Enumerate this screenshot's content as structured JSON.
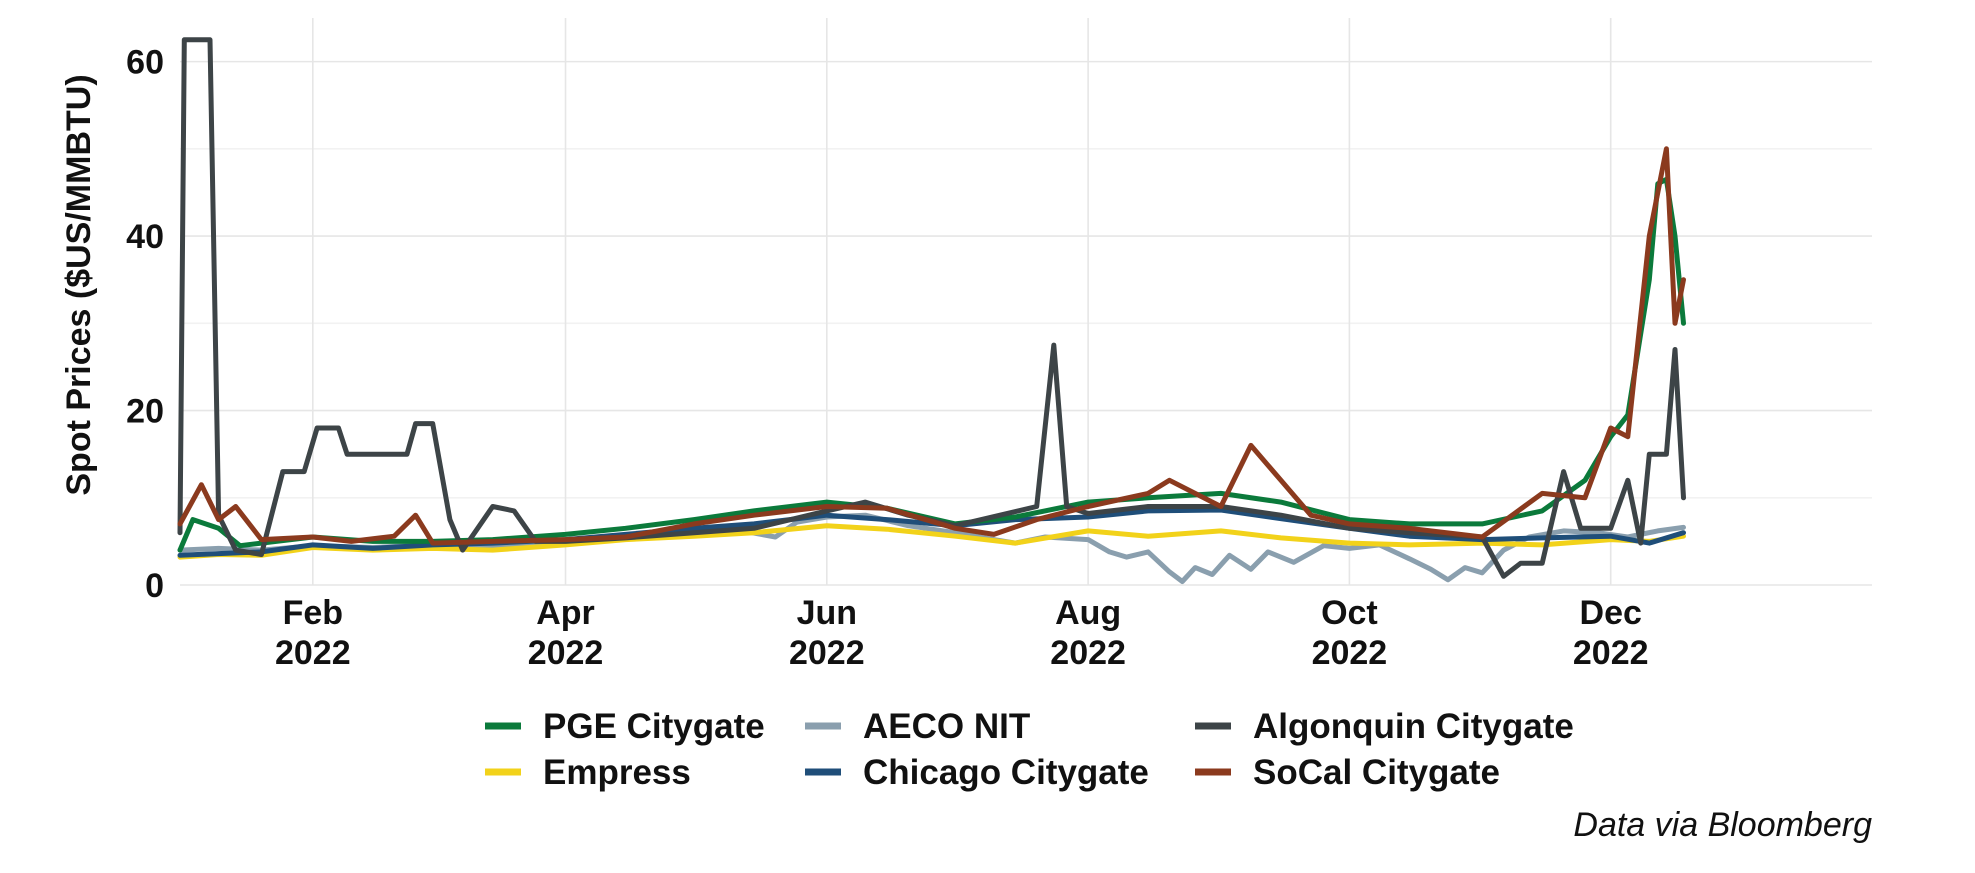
{
  "chart_data": {
    "type": "line",
    "title": "",
    "xlabel": "",
    "ylabel": "Spot Prices ($US/MMBTU)",
    "caption": "Data via Bloomberg",
    "xlim": [
      "2022-01-01",
      "2023-01-31"
    ],
    "ylim": [
      0,
      65
    ],
    "y_ticks": [
      0,
      20,
      40,
      60
    ],
    "x_ticks": [
      {
        "date": "2022-02-01",
        "line1": "Feb",
        "line2": "2022"
      },
      {
        "date": "2022-04-01",
        "line1": "Apr",
        "line2": "2022"
      },
      {
        "date": "2022-06-01",
        "line1": "Jun",
        "line2": "2022"
      },
      {
        "date": "2022-08-01",
        "line1": "Aug",
        "line2": "2022"
      },
      {
        "date": "2022-10-01",
        "line1": "Oct",
        "line2": "2022"
      },
      {
        "date": "2022-12-01",
        "line1": "Dec",
        "line2": "2022"
      }
    ],
    "grid": true,
    "legend_position": "bottom",
    "series": [
      {
        "name": "AECO NIT",
        "color": "#8a9fae",
        "points": [
          [
            "2022-01-01",
            4.0
          ],
          [
            "2022-01-10",
            4.2
          ],
          [
            "2022-01-20",
            4.0
          ],
          [
            "2022-02-01",
            4.5
          ],
          [
            "2022-02-15",
            4.3
          ],
          [
            "2022-03-01",
            4.6
          ],
          [
            "2022-03-15",
            4.5
          ],
          [
            "2022-04-01",
            5.0
          ],
          [
            "2022-04-15",
            5.5
          ],
          [
            "2022-05-01",
            6.0
          ],
          [
            "2022-05-10",
            6.4
          ],
          [
            "2022-05-20",
            5.5
          ],
          [
            "2022-05-25",
            7.2
          ],
          [
            "2022-06-01",
            7.8
          ],
          [
            "2022-06-10",
            8.0
          ],
          [
            "2022-06-20",
            6.8
          ],
          [
            "2022-07-01",
            6.0
          ],
          [
            "2022-07-10",
            5.2
          ],
          [
            "2022-07-15",
            4.8
          ],
          [
            "2022-07-22",
            5.5
          ],
          [
            "2022-08-01",
            5.2
          ],
          [
            "2022-08-06",
            3.8
          ],
          [
            "2022-08-10",
            3.2
          ],
          [
            "2022-08-15",
            3.8
          ],
          [
            "2022-08-20",
            1.5
          ],
          [
            "2022-08-23",
            0.4
          ],
          [
            "2022-08-26",
            2.0
          ],
          [
            "2022-08-30",
            1.2
          ],
          [
            "2022-09-03",
            3.4
          ],
          [
            "2022-09-08",
            1.8
          ],
          [
            "2022-09-12",
            3.8
          ],
          [
            "2022-09-18",
            2.6
          ],
          [
            "2022-09-25",
            4.5
          ],
          [
            "2022-10-01",
            4.2
          ],
          [
            "2022-10-08",
            4.6
          ],
          [
            "2022-10-15",
            3.0
          ],
          [
            "2022-10-20",
            1.8
          ],
          [
            "2022-10-24",
            0.6
          ],
          [
            "2022-10-28",
            2.0
          ],
          [
            "2022-11-01",
            1.4
          ],
          [
            "2022-11-06",
            4.0
          ],
          [
            "2022-11-12",
            5.5
          ],
          [
            "2022-11-20",
            6.2
          ],
          [
            "2022-11-28",
            6.0
          ],
          [
            "2022-12-05",
            5.5
          ],
          [
            "2022-12-12",
            6.2
          ],
          [
            "2022-12-18",
            6.6
          ]
        ]
      },
      {
        "name": "Empress",
        "color": "#f2d21a",
        "points": [
          [
            "2022-01-01",
            3.2
          ],
          [
            "2022-01-10",
            3.5
          ],
          [
            "2022-01-20",
            3.4
          ],
          [
            "2022-02-01",
            4.3
          ],
          [
            "2022-02-15",
            4.0
          ],
          [
            "2022-03-01",
            4.2
          ],
          [
            "2022-03-15",
            4.0
          ],
          [
            "2022-04-01",
            4.6
          ],
          [
            "2022-04-15",
            5.2
          ],
          [
            "2022-05-01",
            5.6
          ],
          [
            "2022-05-15",
            6.0
          ],
          [
            "2022-06-01",
            6.8
          ],
          [
            "2022-06-15",
            6.4
          ],
          [
            "2022-07-01",
            5.6
          ],
          [
            "2022-07-15",
            4.8
          ],
          [
            "2022-08-01",
            6.2
          ],
          [
            "2022-08-15",
            5.6
          ],
          [
            "2022-09-01",
            6.2
          ],
          [
            "2022-09-15",
            5.4
          ],
          [
            "2022-10-01",
            4.8
          ],
          [
            "2022-10-15",
            4.6
          ],
          [
            "2022-11-01",
            4.8
          ],
          [
            "2022-11-15",
            4.6
          ],
          [
            "2022-12-01",
            5.2
          ],
          [
            "2022-12-10",
            5.0
          ],
          [
            "2022-12-18",
            5.6
          ]
        ]
      },
      {
        "name": "Chicago Citygate",
        "color": "#1f4e79",
        "points": [
          [
            "2022-01-01",
            3.4
          ],
          [
            "2022-01-10",
            3.6
          ],
          [
            "2022-01-20",
            3.8
          ],
          [
            "2022-02-01",
            4.6
          ],
          [
            "2022-02-15",
            4.2
          ],
          [
            "2022-03-01",
            4.6
          ],
          [
            "2022-03-15",
            4.8
          ],
          [
            "2022-04-01",
            5.2
          ],
          [
            "2022-04-15",
            5.8
          ],
          [
            "2022-05-01",
            6.5
          ],
          [
            "2022-05-15",
            7.0
          ],
          [
            "2022-06-01",
            8.0
          ],
          [
            "2022-06-15",
            7.5
          ],
          [
            "2022-07-01",
            6.8
          ],
          [
            "2022-07-15",
            7.5
          ],
          [
            "2022-08-01",
            7.8
          ],
          [
            "2022-08-15",
            8.5
          ],
          [
            "2022-09-01",
            8.6
          ],
          [
            "2022-09-15",
            7.6
          ],
          [
            "2022-10-01",
            6.5
          ],
          [
            "2022-10-15",
            5.6
          ],
          [
            "2022-11-01",
            5.2
          ],
          [
            "2022-11-15",
            5.4
          ],
          [
            "2022-12-01",
            5.6
          ],
          [
            "2022-12-10",
            4.8
          ],
          [
            "2022-12-18",
            6.0
          ]
        ]
      },
      {
        "name": "PGE Citygate",
        "color": "#0b7a3b",
        "points": [
          [
            "2022-01-01",
            4.0
          ],
          [
            "2022-01-04",
            7.5
          ],
          [
            "2022-01-10",
            6.5
          ],
          [
            "2022-01-15",
            4.5
          ],
          [
            "2022-01-20",
            4.8
          ],
          [
            "2022-02-01",
            5.5
          ],
          [
            "2022-02-15",
            5.0
          ],
          [
            "2022-03-01",
            5.0
          ],
          [
            "2022-03-15",
            5.2
          ],
          [
            "2022-04-01",
            5.8
          ],
          [
            "2022-04-15",
            6.5
          ],
          [
            "2022-05-01",
            7.5
          ],
          [
            "2022-05-15",
            8.5
          ],
          [
            "2022-06-01",
            9.5
          ],
          [
            "2022-06-15",
            8.8
          ],
          [
            "2022-07-01",
            7.0
          ],
          [
            "2022-07-15",
            7.8
          ],
          [
            "2022-08-01",
            9.5
          ],
          [
            "2022-08-15",
            10.0
          ],
          [
            "2022-09-01",
            10.5
          ],
          [
            "2022-09-15",
            9.5
          ],
          [
            "2022-10-01",
            7.5
          ],
          [
            "2022-10-15",
            7.0
          ],
          [
            "2022-11-01",
            7.0
          ],
          [
            "2022-11-15",
            8.5
          ],
          [
            "2022-11-25",
            12.0
          ],
          [
            "2022-12-01",
            17.0
          ],
          [
            "2022-12-05",
            19.5
          ],
          [
            "2022-12-10",
            35.0
          ],
          [
            "2022-12-12",
            46.0
          ],
          [
            "2022-12-14",
            46.5
          ],
          [
            "2022-12-16",
            40.0
          ],
          [
            "2022-12-18",
            30.0
          ]
        ]
      },
      {
        "name": "Algonquin Citygate",
        "color": "#3d4447",
        "points": [
          [
            "2022-01-01",
            6.0
          ],
          [
            "2022-01-02",
            62.5
          ],
          [
            "2022-01:08",
            62.5
          ],
          [
            "2022-01-10",
            8.0
          ],
          [
            "2022-01-14",
            4.0
          ],
          [
            "2022-01-20",
            3.5
          ],
          [
            "2022-01-25",
            13.0
          ],
          [
            "2022-01-30",
            13.0
          ],
          [
            "2022-02-02",
            18.0
          ],
          [
            "2022-02-07",
            18.0
          ],
          [
            "2022-02-09",
            15.0
          ],
          [
            "2022-02-23",
            15.0
          ],
          [
            "2022-02-25",
            18.5
          ],
          [
            "2022-03-01",
            18.5
          ],
          [
            "2022-03-05",
            7.5
          ],
          [
            "2022-03-08",
            4.0
          ],
          [
            "2022-03-15",
            9.0
          ],
          [
            "2022-03-20",
            8.5
          ],
          [
            "2022-03-25",
            5.0
          ],
          [
            "2022-04-01",
            5.0
          ],
          [
            "2022-04-15",
            5.4
          ],
          [
            "2022-05-01",
            6.0
          ],
          [
            "2022-05-15",
            6.5
          ],
          [
            "2022-06-01",
            8.5
          ],
          [
            "2022-06-10",
            9.5
          ],
          [
            "2022-06-20",
            8.0
          ],
          [
            "2022-07-01",
            6.8
          ],
          [
            "2022-07-20",
            9.0
          ],
          [
            "2022-07-24",
            27.5
          ],
          [
            "2022-07-27",
            9.0
          ],
          [
            "2022-08-01",
            8.2
          ],
          [
            "2022-08-15",
            9.0
          ],
          [
            "2022-09-01",
            9.0
          ],
          [
            "2022-09-15",
            8.0
          ],
          [
            "2022-10-01",
            6.5
          ],
          [
            "2022-10-15",
            6.0
          ],
          [
            "2022-11-01",
            5.5
          ],
          [
            "2022-11-06",
            1.0
          ],
          [
            "2022-11-10",
            2.5
          ],
          [
            "2022-11-15",
            2.5
          ],
          [
            "2022-11-20",
            13.0
          ],
          [
            "2022-11-24",
            6.5
          ],
          [
            "2022-12-01",
            6.5
          ],
          [
            "2022-12-05",
            12.0
          ],
          [
            "2022-12-08",
            4.8
          ],
          [
            "2022-12-10",
            15.0
          ],
          [
            "2022-12-14",
            15.0
          ],
          [
            "2022-12-16",
            27.0
          ],
          [
            "2022-12-18",
            10.0
          ]
        ]
      },
      {
        "name": "SoCal Citygate",
        "color": "#8b3a1e",
        "points": [
          [
            "2022-01-01",
            7.0
          ],
          [
            "2022-01-06",
            11.5
          ],
          [
            "2022-01-10",
            7.5
          ],
          [
            "2022-01-14",
            9.0
          ],
          [
            "2022-01-20",
            5.2
          ],
          [
            "2022-02-01",
            5.5
          ],
          [
            "2022-02-10",
            5.0
          ],
          [
            "2022-02-20",
            5.6
          ],
          [
            "2022-02-25",
            8.0
          ],
          [
            "2022-03-01",
            4.8
          ],
          [
            "2022-03-15",
            5.0
          ],
          [
            "2022-04-01",
            5.2
          ],
          [
            "2022-04-15",
            5.5
          ],
          [
            "2022-05-01",
            7.0
          ],
          [
            "2022-05-15",
            8.0
          ],
          [
            "2022-06-01",
            9.0
          ],
          [
            "2022-06-15",
            8.8
          ],
          [
            "2022-07-01",
            6.5
          ],
          [
            "2022-07-10",
            5.8
          ],
          [
            "2022-07-20",
            7.5
          ],
          [
            "2022-08-01",
            9.0
          ],
          [
            "2022-08-15",
            10.5
          ],
          [
            "2022-08-20",
            12.0
          ],
          [
            "2022-09-01",
            9.0
          ],
          [
            "2022-09-08",
            16.0
          ],
          [
            "2022-09-15",
            12.0
          ],
          [
            "2022-09-22",
            8.0
          ],
          [
            "2022-10-01",
            7.0
          ],
          [
            "2022-10-15",
            6.5
          ],
          [
            "2022-11-01",
            5.5
          ],
          [
            "2022-11-15",
            10.5
          ],
          [
            "2022-11-25",
            10.0
          ],
          [
            "2022-12-01",
            18.0
          ],
          [
            "2022-12-05",
            17.0
          ],
          [
            "2022-12-10",
            40.0
          ],
          [
            "2022-12-12",
            45.0
          ],
          [
            "2022-12-14",
            50.0
          ],
          [
            "2022-12-16",
            30.0
          ],
          [
            "2022-12-18",
            35.0
          ]
        ]
      }
    ],
    "legend": [
      {
        "name": "PGE Citygate",
        "color": "#0b7a3b"
      },
      {
        "name": "Empress",
        "color": "#f2d21a"
      },
      {
        "name": "AECO NIT",
        "color": "#8a9fae"
      },
      {
        "name": "Chicago Citygate",
        "color": "#1f4e79"
      },
      {
        "name": "Algonquin Citygate",
        "color": "#3d4447"
      },
      {
        "name": "SoCal Citygate",
        "color": "#8b3a1e"
      }
    ]
  }
}
